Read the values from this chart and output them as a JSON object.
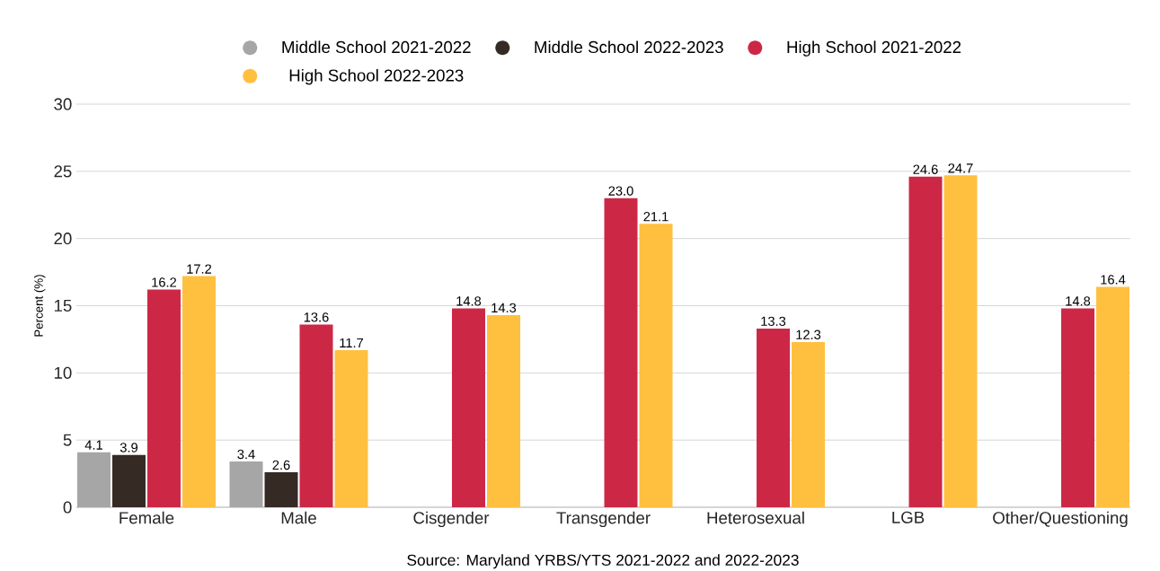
{
  "chart_data": {
    "type": "bar",
    "ylabel": "Percent (%)",
    "categories": [
      "Female",
      "Male",
      "Cisgender",
      "Transgender",
      "Heterosexual",
      "LGB",
      "Other/Questioning"
    ],
    "series": [
      {
        "name": "Middle School 2021-2022",
        "color": "#a6a6a6",
        "values": [
          4.1,
          3.4,
          null,
          null,
          null,
          null,
          null
        ],
        "value_labels": [
          "4.1",
          "3.4",
          null,
          null,
          null,
          null,
          null
        ]
      },
      {
        "name": "Middle School 2022-2023",
        "color": "#362b24",
        "values": [
          3.9,
          2.6,
          null,
          null,
          null,
          null,
          null
        ],
        "value_labels": [
          "3.9",
          "2.6",
          null,
          null,
          null,
          null,
          null
        ]
      },
      {
        "name": "High School 2021-2022",
        "color": "#cc2846",
        "values": [
          16.2,
          13.6,
          14.8,
          23.0,
          13.3,
          24.6,
          14.8
        ],
        "value_labels": [
          "16.2",
          "13.6",
          "14.8",
          "23.0",
          "13.3",
          "24.6",
          "14.8"
        ]
      },
      {
        "name": "High School 2022-2023",
        "color": "#ffc03f",
        "values": [
          17.2,
          11.7,
          14.3,
          21.1,
          12.3,
          24.7,
          16.4
        ],
        "value_labels": [
          "17.2",
          "11.7",
          "14.3",
          "21.1",
          "12.3",
          "24.7",
          "16.4"
        ]
      }
    ],
    "ylim": [
      0,
      30
    ],
    "yticks": [
      0,
      5,
      10,
      15,
      20,
      25,
      30
    ],
    "grid": "y",
    "legend": "top",
    "annotations": [
      "Source: Maryland YRBS/YTS 2021-2022 and 2022-2023"
    ]
  }
}
